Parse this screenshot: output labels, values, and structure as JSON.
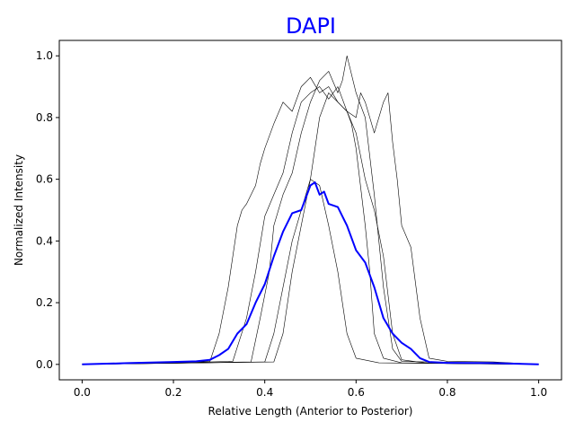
{
  "chart_data": {
    "type": "line",
    "title": "DAPI",
    "title_color": "#0000ff",
    "xlabel": "Relative Length (Anterior to Posterior)",
    "ylabel": "Normalized Intensity",
    "xlim": [
      -0.05,
      1.05
    ],
    "ylim": [
      -0.05,
      1.05
    ],
    "x_ticks": [
      0.0,
      0.2,
      0.4,
      0.6,
      0.8,
      1.0
    ],
    "x_tick_labels": [
      "0.0",
      "0.2",
      "0.4",
      "0.6",
      "0.8",
      "1.0"
    ],
    "y_ticks": [
      0.0,
      0.2,
      0.4,
      0.6,
      0.8,
      1.0
    ],
    "y_tick_labels": [
      "0.0",
      "0.2",
      "0.4",
      "0.6",
      "0.8",
      "1.0"
    ],
    "grid": false,
    "legend": "none",
    "series": [
      {
        "color": "#000000",
        "width": 0.6,
        "points": [
          [
            0,
            0
          ],
          [
            0.1,
            0.003
          ],
          [
            0.2,
            0.006
          ],
          [
            0.28,
            0.01
          ],
          [
            0.3,
            0.1
          ],
          [
            0.32,
            0.25
          ],
          [
            0.34,
            0.45
          ],
          [
            0.35,
            0.5
          ],
          [
            0.36,
            0.52
          ],
          [
            0.38,
            0.58
          ],
          [
            0.39,
            0.65
          ],
          [
            0.4,
            0.7
          ],
          [
            0.42,
            0.78
          ],
          [
            0.44,
            0.85
          ],
          [
            0.46,
            0.82
          ],
          [
            0.48,
            0.9
          ],
          [
            0.5,
            0.93
          ],
          [
            0.52,
            0.88
          ],
          [
            0.54,
            0.9
          ],
          [
            0.56,
            0.85
          ],
          [
            0.58,
            0.82
          ],
          [
            0.6,
            0.75
          ],
          [
            0.62,
            0.6
          ],
          [
            0.64,
            0.5
          ],
          [
            0.66,
            0.35
          ],
          [
            0.68,
            0.1
          ],
          [
            0.7,
            0.015
          ],
          [
            0.75,
            0.005
          ],
          [
            0.8,
            0.003
          ],
          [
            1.0,
            0
          ]
        ]
      },
      {
        "color": "#000000",
        "width": 0.6,
        "points": [
          [
            0,
            0
          ],
          [
            0.2,
            0.005
          ],
          [
            0.33,
            0.01
          ],
          [
            0.36,
            0.15
          ],
          [
            0.38,
            0.3
          ],
          [
            0.4,
            0.48
          ],
          [
            0.42,
            0.55
          ],
          [
            0.44,
            0.62
          ],
          [
            0.46,
            0.75
          ],
          [
            0.48,
            0.85
          ],
          [
            0.5,
            0.88
          ],
          [
            0.52,
            0.9
          ],
          [
            0.54,
            0.86
          ],
          [
            0.56,
            0.9
          ],
          [
            0.58,
            0.82
          ],
          [
            0.59,
            0.78
          ],
          [
            0.6,
            0.7
          ],
          [
            0.62,
            0.45
          ],
          [
            0.63,
            0.3
          ],
          [
            0.64,
            0.1
          ],
          [
            0.66,
            0.02
          ],
          [
            0.7,
            0.005
          ],
          [
            1.0,
            0
          ]
        ]
      },
      {
        "color": "#000000",
        "width": 0.6,
        "points": [
          [
            0,
            0
          ],
          [
            0.2,
            0.004
          ],
          [
            0.37,
            0.008
          ],
          [
            0.39,
            0.15
          ],
          [
            0.41,
            0.3
          ],
          [
            0.42,
            0.45
          ],
          [
            0.44,
            0.55
          ],
          [
            0.46,
            0.62
          ],
          [
            0.48,
            0.75
          ],
          [
            0.5,
            0.85
          ],
          [
            0.52,
            0.92
          ],
          [
            0.54,
            0.95
          ],
          [
            0.56,
            0.88
          ],
          [
            0.57,
            0.92
          ],
          [
            0.58,
            1.0
          ],
          [
            0.6,
            0.88
          ],
          [
            0.62,
            0.8
          ],
          [
            0.64,
            0.55
          ],
          [
            0.66,
            0.25
          ],
          [
            0.68,
            0.05
          ],
          [
            0.7,
            0.01
          ],
          [
            1.0,
            0
          ]
        ]
      },
      {
        "color": "#000000",
        "width": 0.6,
        "points": [
          [
            0,
            0
          ],
          [
            0.2,
            0.004
          ],
          [
            0.4,
            0.008
          ],
          [
            0.42,
            0.1
          ],
          [
            0.44,
            0.25
          ],
          [
            0.46,
            0.4
          ],
          [
            0.48,
            0.5
          ],
          [
            0.5,
            0.6
          ],
          [
            0.52,
            0.8
          ],
          [
            0.54,
            0.88
          ],
          [
            0.56,
            0.85
          ],
          [
            0.58,
            0.82
          ],
          [
            0.6,
            0.8
          ],
          [
            0.61,
            0.88
          ],
          [
            0.62,
            0.85
          ],
          [
            0.63,
            0.8
          ],
          [
            0.64,
            0.75
          ],
          [
            0.66,
            0.85
          ],
          [
            0.67,
            0.88
          ],
          [
            0.68,
            0.72
          ],
          [
            0.69,
            0.6
          ],
          [
            0.7,
            0.45
          ],
          [
            0.72,
            0.38
          ],
          [
            0.74,
            0.15
          ],
          [
            0.76,
            0.02
          ],
          [
            0.8,
            0.01
          ],
          [
            0.9,
            0.008
          ],
          [
            1.0,
            0
          ]
        ]
      },
      {
        "color": "#000000",
        "width": 0.6,
        "points": [
          [
            0,
            0
          ],
          [
            0.2,
            0.004
          ],
          [
            0.42,
            0.008
          ],
          [
            0.44,
            0.1
          ],
          [
            0.46,
            0.3
          ],
          [
            0.48,
            0.45
          ],
          [
            0.5,
            0.6
          ],
          [
            0.52,
            0.58
          ],
          [
            0.54,
            0.45
          ],
          [
            0.56,
            0.3
          ],
          [
            0.58,
            0.1
          ],
          [
            0.6,
            0.02
          ],
          [
            0.65,
            0.005
          ],
          [
            1.0,
            0
          ]
        ]
      },
      {
        "color": "#0000ff",
        "width": 2,
        "points": [
          [
            0,
            0
          ],
          [
            0.1,
            0.004
          ],
          [
            0.2,
            0.008
          ],
          [
            0.25,
            0.01
          ],
          [
            0.28,
            0.015
          ],
          [
            0.3,
            0.03
          ],
          [
            0.32,
            0.05
          ],
          [
            0.34,
            0.1
          ],
          [
            0.36,
            0.13
          ],
          [
            0.38,
            0.2
          ],
          [
            0.4,
            0.26
          ],
          [
            0.42,
            0.35
          ],
          [
            0.44,
            0.43
          ],
          [
            0.46,
            0.49
          ],
          [
            0.48,
            0.5
          ],
          [
            0.5,
            0.58
          ],
          [
            0.51,
            0.59
          ],
          [
            0.52,
            0.55
          ],
          [
            0.53,
            0.56
          ],
          [
            0.54,
            0.52
          ],
          [
            0.56,
            0.51
          ],
          [
            0.58,
            0.45
          ],
          [
            0.6,
            0.37
          ],
          [
            0.62,
            0.33
          ],
          [
            0.64,
            0.25
          ],
          [
            0.66,
            0.15
          ],
          [
            0.68,
            0.1
          ],
          [
            0.7,
            0.07
          ],
          [
            0.72,
            0.05
          ],
          [
            0.74,
            0.02
          ],
          [
            0.76,
            0.008
          ],
          [
            0.8,
            0.005
          ],
          [
            0.9,
            0.004
          ],
          [
            1.0,
            0
          ]
        ]
      }
    ]
  }
}
